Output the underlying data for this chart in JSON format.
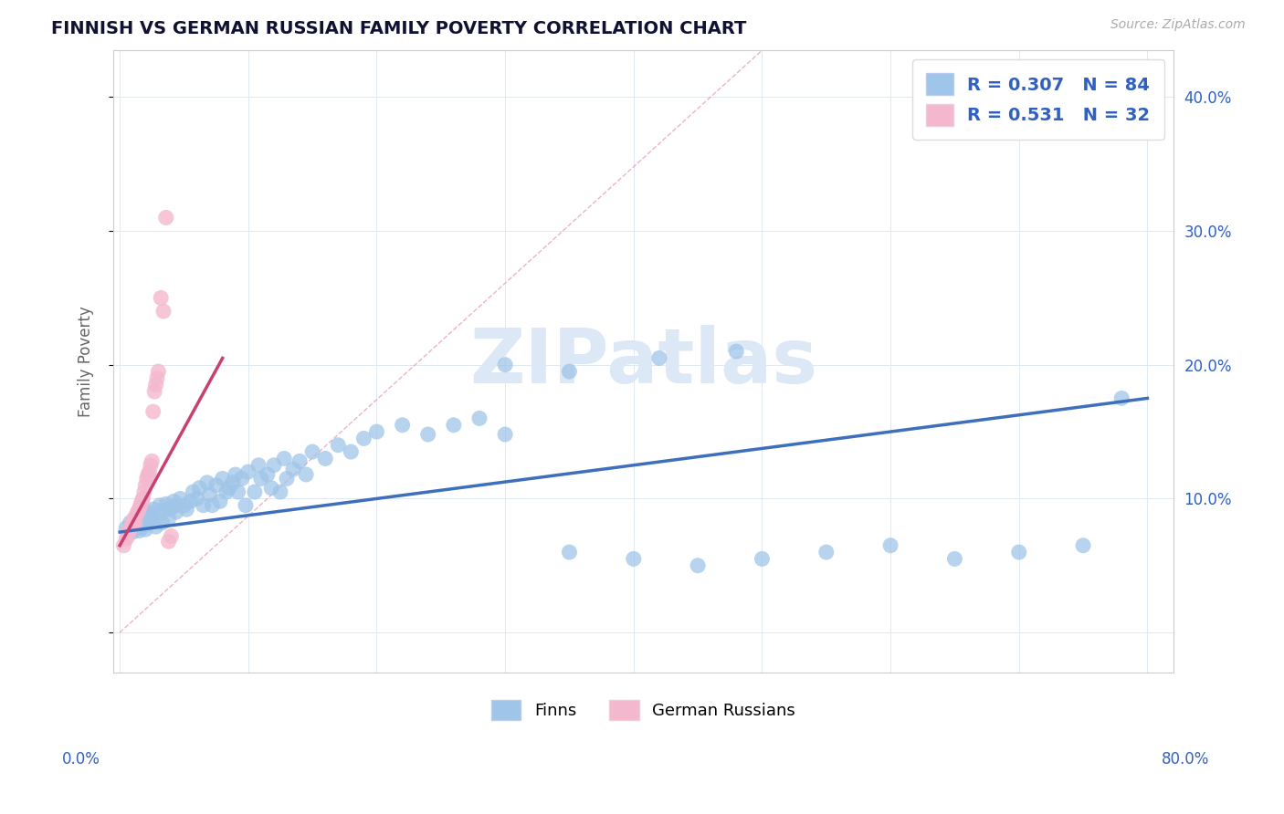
{
  "title": "FINNISH VS GERMAN RUSSIAN FAMILY POVERTY CORRELATION CHART",
  "source": "Source: ZipAtlas.com",
  "ylabel": "Family Poverty",
  "xlim": [
    -0.005,
    0.82
  ],
  "ylim": [
    -0.03,
    0.435
  ],
  "finn_R": 0.307,
  "finn_N": 84,
  "german_R": 0.531,
  "german_N": 32,
  "finn_color": "#9fc5e8",
  "finn_edge_color": "#9fc5e8",
  "german_color": "#f4b8ce",
  "german_edge_color": "#f4b8ce",
  "finn_line_color": "#3d6fbc",
  "german_line_color": "#c94070",
  "diag_line_color": "#e8a0b8",
  "legend_text_color": "#3060c0",
  "right_ytick_color": "#3060c0",
  "watermark_color": "#dce8f5",
  "finn_x": [
    0.005,
    0.008,
    0.01,
    0.012,
    0.013,
    0.015,
    0.016,
    0.018,
    0.019,
    0.02,
    0.022,
    0.023,
    0.025,
    0.026,
    0.028,
    0.03,
    0.031,
    0.033,
    0.035,
    0.036,
    0.038,
    0.04,
    0.042,
    0.044,
    0.045,
    0.047,
    0.05,
    0.052,
    0.055,
    0.057,
    0.06,
    0.062,
    0.065,
    0.068,
    0.07,
    0.072,
    0.075,
    0.078,
    0.08,
    0.083,
    0.085,
    0.088,
    0.09,
    0.092,
    0.095,
    0.098,
    0.1,
    0.105,
    0.108,
    0.11,
    0.115,
    0.118,
    0.12,
    0.125,
    0.128,
    0.13,
    0.135,
    0.14,
    0.145,
    0.15,
    0.16,
    0.17,
    0.18,
    0.19,
    0.2,
    0.22,
    0.24,
    0.26,
    0.28,
    0.3,
    0.35,
    0.4,
    0.45,
    0.5,
    0.55,
    0.6,
    0.65,
    0.7,
    0.75,
    0.78,
    0.3,
    0.35,
    0.42,
    0.48
  ],
  "finn_y": [
    0.078,
    0.082,
    0.075,
    0.08,
    0.085,
    0.076,
    0.083,
    0.079,
    0.088,
    0.077,
    0.09,
    0.084,
    0.086,
    0.092,
    0.079,
    0.088,
    0.095,
    0.082,
    0.091,
    0.096,
    0.085,
    0.093,
    0.098,
    0.09,
    0.095,
    0.1,
    0.095,
    0.092,
    0.098,
    0.105,
    0.1,
    0.108,
    0.095,
    0.112,
    0.103,
    0.095,
    0.11,
    0.098,
    0.115,
    0.105,
    0.108,
    0.112,
    0.118,
    0.105,
    0.115,
    0.095,
    0.12,
    0.105,
    0.125,
    0.115,
    0.118,
    0.108,
    0.125,
    0.105,
    0.13,
    0.115,
    0.122,
    0.128,
    0.118,
    0.135,
    0.13,
    0.14,
    0.135,
    0.145,
    0.15,
    0.155,
    0.148,
    0.155,
    0.16,
    0.148,
    0.06,
    0.055,
    0.05,
    0.055,
    0.06,
    0.065,
    0.055,
    0.06,
    0.065,
    0.175,
    0.2,
    0.195,
    0.205,
    0.21
  ],
  "german_x": [
    0.003,
    0.005,
    0.006,
    0.007,
    0.008,
    0.009,
    0.01,
    0.011,
    0.012,
    0.013,
    0.014,
    0.015,
    0.016,
    0.017,
    0.018,
    0.019,
    0.02,
    0.021,
    0.022,
    0.023,
    0.024,
    0.025,
    0.026,
    0.027,
    0.028,
    0.029,
    0.03,
    0.032,
    0.034,
    0.036,
    0.038,
    0.04
  ],
  "german_y": [
    0.065,
    0.07,
    0.072,
    0.075,
    0.078,
    0.08,
    0.082,
    0.085,
    0.082,
    0.088,
    0.09,
    0.092,
    0.095,
    0.098,
    0.1,
    0.105,
    0.11,
    0.115,
    0.118,
    0.12,
    0.125,
    0.128,
    0.165,
    0.18,
    0.185,
    0.19,
    0.195,
    0.25,
    0.24,
    0.31,
    0.068,
    0.072
  ]
}
